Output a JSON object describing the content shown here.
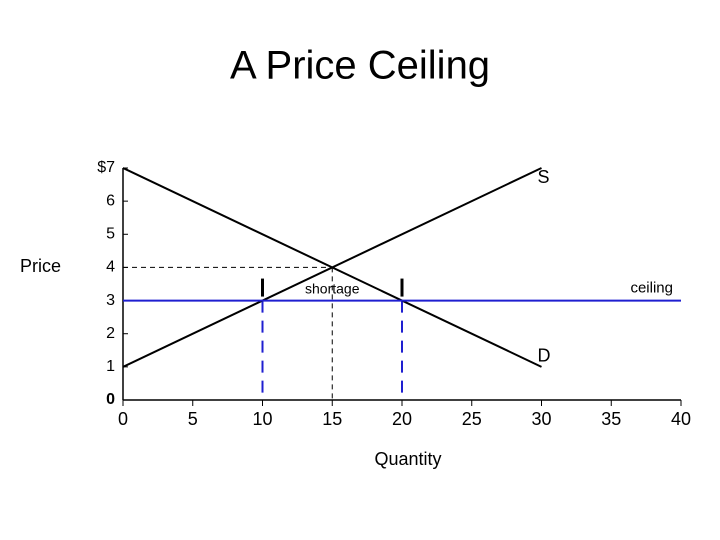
{
  "chart_data": {
    "type": "line",
    "title": "A Price Ceiling",
    "xlabel": "Quantity",
    "ylabel": "Price",
    "xlim": [
      0,
      40
    ],
    "ylim": [
      0,
      7
    ],
    "xticks": [
      0,
      5,
      10,
      15,
      20,
      25,
      30,
      35,
      40
    ],
    "yticks": [
      0,
      1,
      2,
      3,
      4,
      5,
      6,
      {
        "value": 7,
        "label": "$7"
      }
    ],
    "series": [
      {
        "name": "S",
        "color": "#000000",
        "x": [
          0,
          30
        ],
        "values": [
          1,
          7
        ]
      },
      {
        "name": "D",
        "color": "#000000",
        "x": [
          0,
          30
        ],
        "values": [
          7,
          1
        ]
      },
      {
        "name": "ceiling",
        "color": "#1f1fd0",
        "x": [
          0,
          40
        ],
        "values": [
          3,
          3
        ]
      }
    ],
    "guides": [
      {
        "x": 15,
        "y": 4,
        "color": "#000000"
      },
      {
        "x": 10,
        "y": 3,
        "color": "#1f1fd0"
      },
      {
        "x": 20,
        "y": 3,
        "color": "#1f1fd0"
      }
    ],
    "annotation": {
      "text": "shortage",
      "x": [
        10,
        20
      ]
    }
  }
}
